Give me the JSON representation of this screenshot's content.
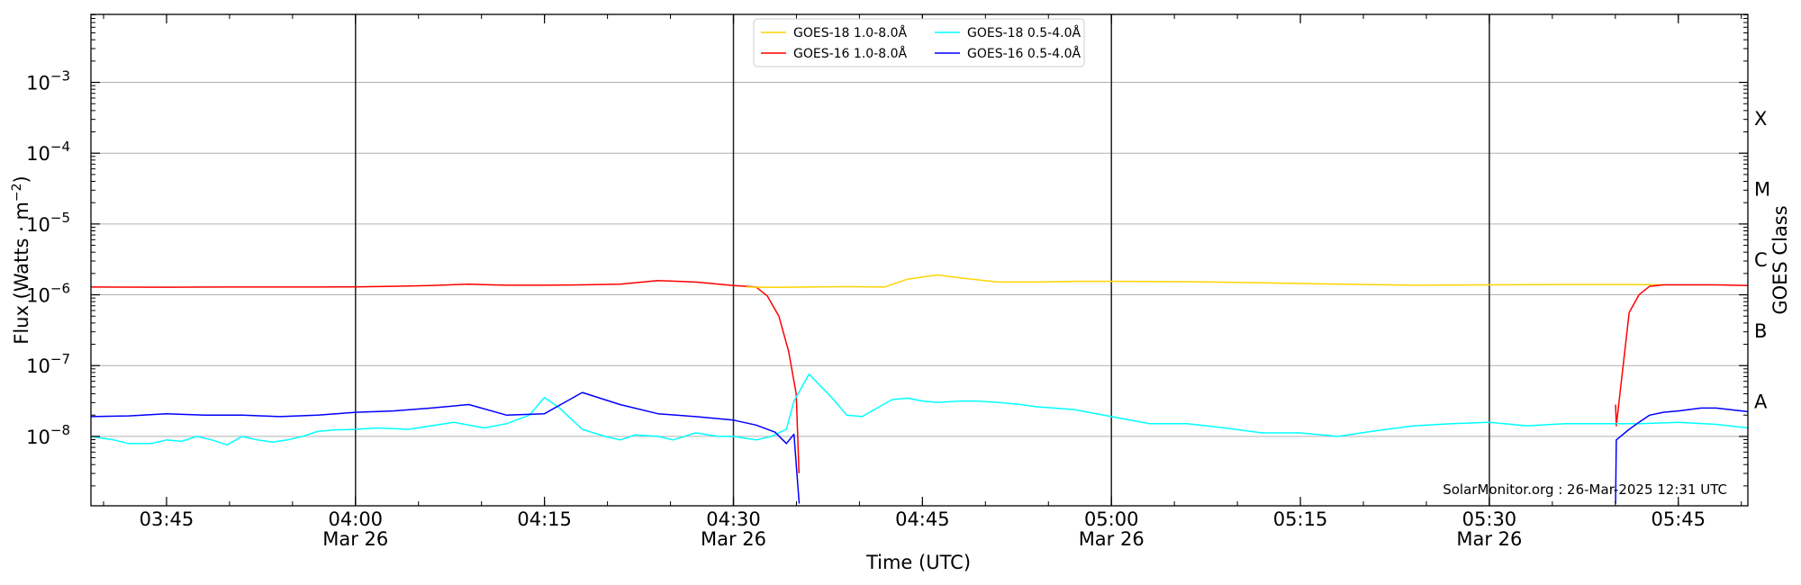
{
  "chart_data": {
    "type": "line",
    "xlabel": "Time (UTC)",
    "ylabel_text": "Flux (Watts · m",
    "ylabel_sup": "−2",
    "ylabel_close": ")",
    "right_axis_label": "GOES Class",
    "y_scale": "log",
    "ylim_exponent": [
      -8.98,
      -2.04
    ],
    "xlim_minutes": [
      3.65,
      5.842
    ],
    "x_ticks": [
      {
        "t": "03:45",
        "d": ""
      },
      {
        "t": "04:00",
        "d": "Mar 26"
      },
      {
        "t": "04:15",
        "d": ""
      },
      {
        "t": "04:30",
        "d": "Mar 26"
      },
      {
        "t": "04:45",
        "d": ""
      },
      {
        "t": "05:00",
        "d": "Mar 26"
      },
      {
        "t": "05:15",
        "d": ""
      },
      {
        "t": "05:30",
        "d": "Mar 26"
      },
      {
        "t": "05:45",
        "d": ""
      }
    ],
    "y_ticks": [
      {
        "base": "10",
        "exp": "−3",
        "value": -3
      },
      {
        "base": "10",
        "exp": "−4",
        "value": -4
      },
      {
        "base": "10",
        "exp": "−5",
        "value": -5
      },
      {
        "base": "10",
        "exp": "−6",
        "value": -6
      },
      {
        "base": "10",
        "exp": "−7",
        "value": -7
      },
      {
        "base": "10",
        "exp": "−8",
        "value": -8
      }
    ],
    "goes_classes": [
      "X",
      "M",
      "C",
      "B",
      "A"
    ],
    "legend": [
      {
        "name": "GOES-18 1.0-8.0Å",
        "color": "#ffd400"
      },
      {
        "name": "GOES-16 1.0-8.0Å",
        "color": "#ff0000"
      },
      {
        "name": "GOES-18 0.5-4.0Å",
        "color": "#00ffff"
      },
      {
        "name": "GOES-16 0.5-4.0Å",
        "color": "#0000ff"
      }
    ],
    "vertical_lines_hours": [
      4.0,
      4.5,
      5.0,
      5.5
    ],
    "grid": "horizontal",
    "legend_position": "top-center",
    "series": [
      {
        "name": "GOES-16 1.0-8.0Å",
        "color": "#ff0000",
        "x_hours": [
          3.65,
          3.75,
          3.85,
          3.95,
          4.0,
          4.05,
          4.1,
          4.15,
          4.18,
          4.2,
          4.25,
          4.3,
          4.35,
          4.4,
          4.45,
          4.5,
          4.517,
          4.53,
          4.545,
          4.56,
          4.573,
          4.583,
          4.5867
        ],
        "y_log": [
          -5.89,
          -5.893,
          -5.89,
          -5.89,
          -5.887,
          -5.88,
          -5.87,
          -5.85,
          -5.86,
          -5.865,
          -5.865,
          -5.86,
          -5.85,
          -5.8,
          -5.82,
          -5.87,
          -5.88,
          -5.89,
          -6.02,
          -6.3,
          -6.8,
          -7.4,
          -8.52
        ]
      },
      {
        "name": "GOES-18 1.0-8.0Å",
        "color": "#ffd400",
        "x_hours": [
          4.517,
          4.55,
          4.6,
          4.65,
          4.7,
          4.73,
          4.77,
          4.8,
          4.85,
          4.9,
          4.95,
          5.0,
          5.1,
          5.2,
          5.3,
          5.4,
          5.5,
          5.6,
          5.69,
          5.73
        ],
        "y_log": [
          -5.89,
          -5.895,
          -5.89,
          -5.885,
          -5.89,
          -5.78,
          -5.72,
          -5.76,
          -5.82,
          -5.82,
          -5.81,
          -5.81,
          -5.815,
          -5.83,
          -5.85,
          -5.865,
          -5.86,
          -5.855,
          -5.855,
          -5.86
        ]
      },
      {
        "name": "GOES-16 1.0-8.0Å",
        "color": "#ff0000",
        "x_hours": [
          5.667,
          5.668,
          5.685,
          5.698,
          5.712,
          5.73,
          5.75,
          5.8,
          5.842
        ],
        "y_log": [
          -7.55,
          -7.85,
          -6.25,
          -6.0,
          -5.88,
          -5.86,
          -5.86,
          -5.86,
          -5.87
        ]
      },
      {
        "name": "GOES-18 0.5-4.0Å",
        "color": "#00ffff",
        "x_hours": [
          3.65,
          3.68,
          3.7,
          3.73,
          3.75,
          3.77,
          3.79,
          3.81,
          3.83,
          3.85,
          3.87,
          3.89,
          3.91,
          3.93,
          3.95,
          3.97,
          4.0,
          4.03,
          4.07,
          4.1,
          4.13,
          4.17,
          4.2,
          4.23,
          4.25,
          4.27,
          4.3,
          4.33,
          4.35,
          4.37,
          4.4,
          4.42,
          4.45,
          4.48,
          4.5,
          4.53,
          4.55,
          4.57,
          4.58,
          4.6,
          4.63,
          4.65,
          4.67,
          4.69,
          4.71,
          4.73,
          4.75,
          4.77,
          4.8,
          4.82,
          4.85,
          4.88,
          4.9,
          4.95,
          5.0,
          5.05,
          5.1,
          5.15,
          5.2,
          5.25,
          5.3,
          5.35,
          5.4,
          5.45,
          5.5,
          5.55,
          5.6,
          5.65,
          5.7,
          5.75,
          5.8,
          5.842
        ],
        "y_log": [
          -8.0,
          -8.05,
          -8.1,
          -8.1,
          -8.05,
          -8.07,
          -8.0,
          -8.05,
          -8.12,
          -8.0,
          -8.05,
          -8.08,
          -8.05,
          -8.0,
          -7.93,
          -7.91,
          -7.9,
          -7.88,
          -7.9,
          -7.85,
          -7.8,
          -7.88,
          -7.82,
          -7.7,
          -7.45,
          -7.6,
          -7.9,
          -8.0,
          -8.05,
          -7.98,
          -8.0,
          -8.05,
          -7.95,
          -8.0,
          -8.0,
          -8.05,
          -8.0,
          -7.9,
          -7.5,
          -7.12,
          -7.45,
          -7.7,
          -7.72,
          -7.6,
          -7.48,
          -7.46,
          -7.5,
          -7.52,
          -7.5,
          -7.5,
          -7.52,
          -7.55,
          -7.58,
          -7.62,
          -7.72,
          -7.82,
          -7.82,
          -7.88,
          -7.95,
          -7.95,
          -8.0,
          -7.92,
          -7.85,
          -7.82,
          -7.8,
          -7.85,
          -7.82,
          -7.82,
          -7.82,
          -7.8,
          -7.83,
          -7.88
        ]
      },
      {
        "name": "GOES-16 0.5-4.0Å",
        "color": "#0000ff",
        "x_hours": [
          3.65,
          3.7,
          3.75,
          3.8,
          3.85,
          3.9,
          3.95,
          4.0,
          4.05,
          4.1,
          4.15,
          4.2,
          4.25,
          4.3,
          4.35,
          4.4,
          4.45,
          4.5,
          4.53,
          4.555,
          4.57,
          4.58,
          4.587
        ],
        "y_log": [
          -7.72,
          -7.71,
          -7.68,
          -7.7,
          -7.7,
          -7.72,
          -7.7,
          -7.66,
          -7.64,
          -7.6,
          -7.55,
          -7.7,
          -7.68,
          -7.38,
          -7.55,
          -7.68,
          -7.72,
          -7.77,
          -7.84,
          -7.94,
          -8.1,
          -7.97,
          -8.95
        ]
      },
      {
        "name": "GOES-16 0.5-4.0Å",
        "color": "#0000ff",
        "x_hours": [
          5.667,
          5.668,
          5.685,
          5.698,
          5.712,
          5.73,
          5.75,
          5.78,
          5.8,
          5.842
        ],
        "y_log": [
          -8.95,
          -8.05,
          -7.9,
          -7.8,
          -7.7,
          -7.66,
          -7.64,
          -7.6,
          -7.6,
          -7.65
        ]
      }
    ],
    "watermark": "SolarMonitor.org : 26-Mar-2025 12:31 UTC"
  }
}
